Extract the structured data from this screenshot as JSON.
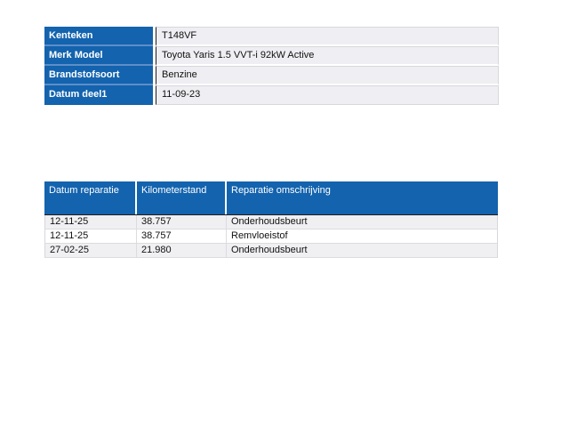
{
  "colors": {
    "header_blue": "#1363ae",
    "value_cell_bg": "#efeff3",
    "alt_row_bg": "#f0f0f3",
    "page_bg": "#ffffff"
  },
  "vehicle_info": {
    "rows": [
      {
        "label": "Kenteken",
        "value": "T148VF"
      },
      {
        "label": "Merk Model",
        "value": "Toyota Yaris 1.5 VVT-i 92kW Active"
      },
      {
        "label": "Brandstofsoort",
        "value": "Benzine"
      },
      {
        "label": "Datum deel1",
        "value": "11-09-23"
      }
    ]
  },
  "repair_history": {
    "columns": [
      "Datum reparatie",
      "Kilometerstand",
      "Reparatie omschrijving"
    ],
    "rows": [
      [
        "12-11-25",
        "38.757",
        "Onderhoudsbeurt"
      ],
      [
        "12-11-25",
        "38.757",
        "Remvloeistof"
      ],
      [
        "27-02-25",
        "21.980",
        "Onderhoudsbeurt"
      ]
    ]
  }
}
